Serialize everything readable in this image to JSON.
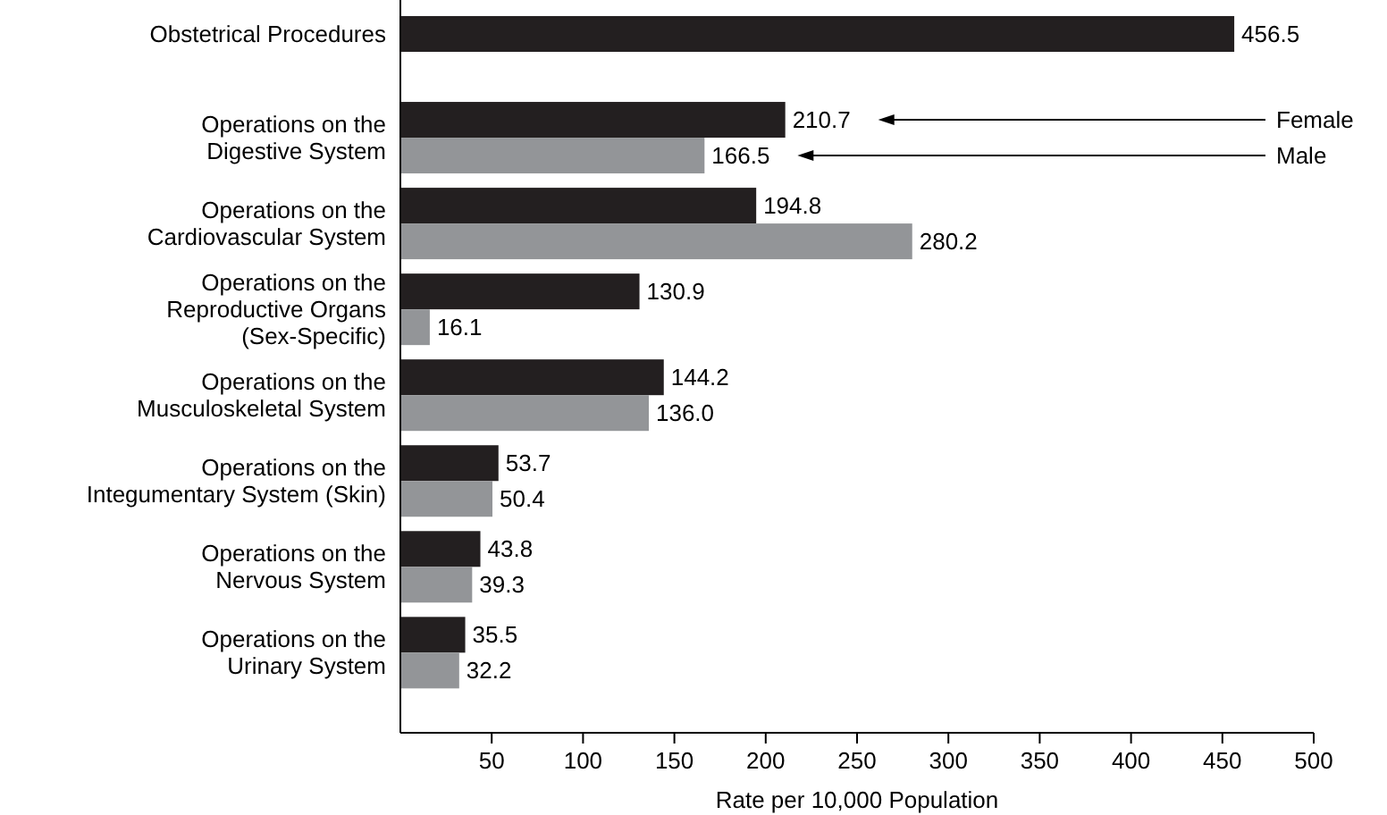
{
  "chart_data": {
    "type": "bar",
    "orientation": "horizontal",
    "xlabel": "Rate per 10,000 Population",
    "categories": [
      "Obstetrical Procedures",
      "Operations on the\nDigestive System",
      "Operations on the\nCardiovascular System",
      "Operations on the\nReproductive Organs\n(Sex-Specific)",
      "Operations on the\nMusculoskeletal System",
      "Operations on the\nIntegumentary System (Skin)",
      "Operations on the\nNervous System",
      "Operations on the\nUrinary System"
    ],
    "series": [
      {
        "name": "Female",
        "color": "#231f20",
        "values": [
          456.5,
          210.7,
          194.8,
          130.9,
          144.2,
          53.7,
          43.8,
          35.5
        ],
        "value_labels": [
          "456.5",
          "210.7",
          "194.8",
          "130.9",
          "144.2",
          "53.7",
          "43.8",
          "35.5"
        ]
      },
      {
        "name": "Male",
        "color": "#939598",
        "values": [
          null,
          166.5,
          280.2,
          16.1,
          136.0,
          50.4,
          39.3,
          32.2
        ],
        "value_labels": [
          null,
          "166.5",
          "280.2",
          "16.1",
          "136.0",
          "50.4",
          "39.3",
          "32.2"
        ]
      }
    ],
    "xlim": [
      0,
      500
    ],
    "xticks": [
      50,
      100,
      150,
      200,
      250,
      300,
      350,
      400,
      450,
      500
    ],
    "legend": "right",
    "grid": false
  }
}
